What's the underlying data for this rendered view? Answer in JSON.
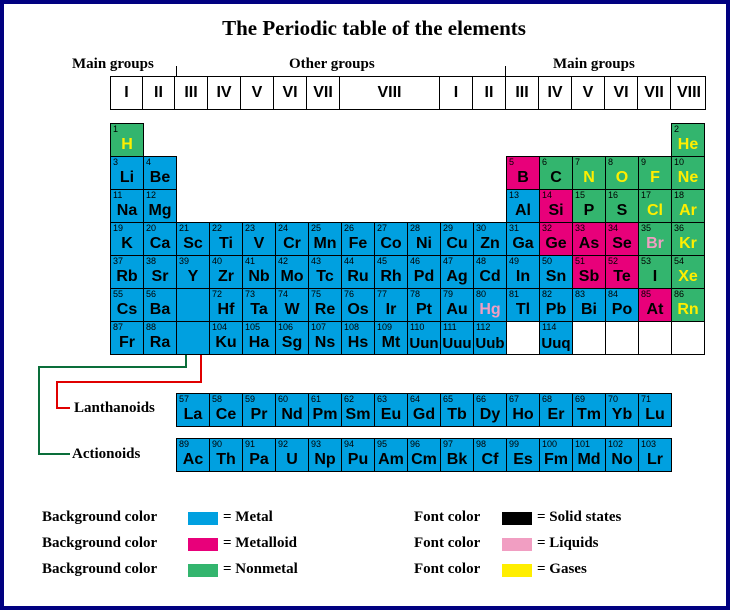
{
  "title": "The Periodic table of the elements",
  "group_headers": {
    "main_left": "Main groups",
    "other": "Other groups",
    "main_right": "Main groups"
  },
  "group_numbers": [
    "I",
    "II",
    "III",
    "IV",
    "V",
    "VI",
    "VII",
    "VIII",
    "I",
    "II",
    "III",
    "IV",
    "V",
    "VI",
    "VII",
    "VIII"
  ],
  "colors": {
    "metal": "#00a0e0",
    "metalloid": "#e8007a",
    "nonmetal": "#33b56e",
    "solid": "#000000",
    "liquid": "#f19ec2",
    "gas": "#ffee00",
    "border": "#000080",
    "lanthanoid_connector": "#e00000",
    "actinoid_connector": "#0a6e3a"
  },
  "elements": [
    {
      "n": "1",
      "s": "H",
      "p": 1,
      "c": 1,
      "t": "nonmetal",
      "st": "gas"
    },
    {
      "n": "2",
      "s": "He",
      "p": 1,
      "c": 18,
      "t": "nonmetal",
      "st": "gas"
    },
    {
      "n": "3",
      "s": "Li",
      "p": 2,
      "c": 1,
      "t": "metal",
      "st": "solid"
    },
    {
      "n": "4",
      "s": "Be",
      "p": 2,
      "c": 2,
      "t": "metal",
      "st": "solid"
    },
    {
      "n": "5",
      "s": "B",
      "p": 2,
      "c": 13,
      "t": "metalloid",
      "st": "solid"
    },
    {
      "n": "6",
      "s": "C",
      "p": 2,
      "c": 14,
      "t": "nonmetal",
      "st": "solid"
    },
    {
      "n": "7",
      "s": "N",
      "p": 2,
      "c": 15,
      "t": "nonmetal",
      "st": "gas"
    },
    {
      "n": "8",
      "s": "O",
      "p": 2,
      "c": 16,
      "t": "nonmetal",
      "st": "gas"
    },
    {
      "n": "9",
      "s": "F",
      "p": 2,
      "c": 17,
      "t": "nonmetal",
      "st": "gas"
    },
    {
      "n": "10",
      "s": "Ne",
      "p": 2,
      "c": 18,
      "t": "nonmetal",
      "st": "gas"
    },
    {
      "n": "11",
      "s": "Na",
      "p": 3,
      "c": 1,
      "t": "metal",
      "st": "solid"
    },
    {
      "n": "12",
      "s": "Mg",
      "p": 3,
      "c": 2,
      "t": "metal",
      "st": "solid"
    },
    {
      "n": "13",
      "s": "Al",
      "p": 3,
      "c": 13,
      "t": "metal",
      "st": "solid"
    },
    {
      "n": "14",
      "s": "Si",
      "p": 3,
      "c": 14,
      "t": "metalloid",
      "st": "solid"
    },
    {
      "n": "15",
      "s": "P",
      "p": 3,
      "c": 15,
      "t": "nonmetal",
      "st": "solid"
    },
    {
      "n": "16",
      "s": "S",
      "p": 3,
      "c": 16,
      "t": "nonmetal",
      "st": "solid"
    },
    {
      "n": "17",
      "s": "Cl",
      "p": 3,
      "c": 17,
      "t": "nonmetal",
      "st": "gas"
    },
    {
      "n": "18",
      "s": "Ar",
      "p": 3,
      "c": 18,
      "t": "nonmetal",
      "st": "gas"
    },
    {
      "n": "19",
      "s": "K",
      "p": 4,
      "c": 1,
      "t": "metal",
      "st": "solid"
    },
    {
      "n": "20",
      "s": "Ca",
      "p": 4,
      "c": 2,
      "t": "metal",
      "st": "solid"
    },
    {
      "n": "21",
      "s": "Sc",
      "p": 4,
      "c": 3,
      "t": "metal",
      "st": "solid"
    },
    {
      "n": "22",
      "s": "Ti",
      "p": 4,
      "c": 4,
      "t": "metal",
      "st": "solid"
    },
    {
      "n": "23",
      "s": "V",
      "p": 4,
      "c": 5,
      "t": "metal",
      "st": "solid"
    },
    {
      "n": "24",
      "s": "Cr",
      "p": 4,
      "c": 6,
      "t": "metal",
      "st": "solid"
    },
    {
      "n": "25",
      "s": "Mn",
      "p": 4,
      "c": 7,
      "t": "metal",
      "st": "solid"
    },
    {
      "n": "26",
      "s": "Fe",
      "p": 4,
      "c": 8,
      "t": "metal",
      "st": "solid"
    },
    {
      "n": "27",
      "s": "Co",
      "p": 4,
      "c": 9,
      "t": "metal",
      "st": "solid"
    },
    {
      "n": "28",
      "s": "Ni",
      "p": 4,
      "c": 10,
      "t": "metal",
      "st": "solid"
    },
    {
      "n": "29",
      "s": "Cu",
      "p": 4,
      "c": 11,
      "t": "metal",
      "st": "solid"
    },
    {
      "n": "30",
      "s": "Zn",
      "p": 4,
      "c": 12,
      "t": "metal",
      "st": "solid"
    },
    {
      "n": "31",
      "s": "Ga",
      "p": 4,
      "c": 13,
      "t": "metal",
      "st": "solid"
    },
    {
      "n": "32",
      "s": "Ge",
      "p": 4,
      "c": 14,
      "t": "metalloid",
      "st": "solid"
    },
    {
      "n": "33",
      "s": "As",
      "p": 4,
      "c": 15,
      "t": "metalloid",
      "st": "solid"
    },
    {
      "n": "34",
      "s": "Se",
      "p": 4,
      "c": 16,
      "t": "metalloid",
      "st": "solid"
    },
    {
      "n": "35",
      "s": "Br",
      "p": 4,
      "c": 17,
      "t": "nonmetal",
      "st": "liquid"
    },
    {
      "n": "36",
      "s": "Kr",
      "p": 4,
      "c": 18,
      "t": "nonmetal",
      "st": "gas"
    },
    {
      "n": "37",
      "s": "Rb",
      "p": 5,
      "c": 1,
      "t": "metal",
      "st": "solid"
    },
    {
      "n": "38",
      "s": "Sr",
      "p": 5,
      "c": 2,
      "t": "metal",
      "st": "solid"
    },
    {
      "n": "39",
      "s": "Y",
      "p": 5,
      "c": 3,
      "t": "metal",
      "st": "solid"
    },
    {
      "n": "40",
      "s": "Zr",
      "p": 5,
      "c": 4,
      "t": "metal",
      "st": "solid"
    },
    {
      "n": "41",
      "s": "Nb",
      "p": 5,
      "c": 5,
      "t": "metal",
      "st": "solid"
    },
    {
      "n": "42",
      "s": "Mo",
      "p": 5,
      "c": 6,
      "t": "metal",
      "st": "solid"
    },
    {
      "n": "43",
      "s": "Tc",
      "p": 5,
      "c": 7,
      "t": "metal",
      "st": "solid"
    },
    {
      "n": "44",
      "s": "Ru",
      "p": 5,
      "c": 8,
      "t": "metal",
      "st": "solid"
    },
    {
      "n": "45",
      "s": "Rh",
      "p": 5,
      "c": 9,
      "t": "metal",
      "st": "solid"
    },
    {
      "n": "46",
      "s": "Pd",
      "p": 5,
      "c": 10,
      "t": "metal",
      "st": "solid"
    },
    {
      "n": "47",
      "s": "Ag",
      "p": 5,
      "c": 11,
      "t": "metal",
      "st": "solid"
    },
    {
      "n": "48",
      "s": "Cd",
      "p": 5,
      "c": 12,
      "t": "metal",
      "st": "solid"
    },
    {
      "n": "49",
      "s": "In",
      "p": 5,
      "c": 13,
      "t": "metal",
      "st": "solid"
    },
    {
      "n": "50",
      "s": "Sn",
      "p": 5,
      "c": 14,
      "t": "metal",
      "st": "solid"
    },
    {
      "n": "51",
      "s": "Sb",
      "p": 5,
      "c": 15,
      "t": "metalloid",
      "st": "solid"
    },
    {
      "n": "52",
      "s": "Te",
      "p": 5,
      "c": 16,
      "t": "metalloid",
      "st": "solid"
    },
    {
      "n": "53",
      "s": "I",
      "p": 5,
      "c": 17,
      "t": "nonmetal",
      "st": "solid"
    },
    {
      "n": "54",
      "s": "Xe",
      "p": 5,
      "c": 18,
      "t": "nonmetal",
      "st": "gas"
    },
    {
      "n": "55",
      "s": "Cs",
      "p": 6,
      "c": 1,
      "t": "metal",
      "st": "solid"
    },
    {
      "n": "56",
      "s": "Ba",
      "p": 6,
      "c": 2,
      "t": "metal",
      "st": "solid"
    },
    {
      "n": "",
      "s": "",
      "p": 6,
      "c": 3,
      "t": "metal",
      "st": "solid"
    },
    {
      "n": "72",
      "s": "Hf",
      "p": 6,
      "c": 4,
      "t": "metal",
      "st": "solid"
    },
    {
      "n": "73",
      "s": "Ta",
      "p": 6,
      "c": 5,
      "t": "metal",
      "st": "solid"
    },
    {
      "n": "74",
      "s": "W",
      "p": 6,
      "c": 6,
      "t": "metal",
      "st": "solid"
    },
    {
      "n": "75",
      "s": "Re",
      "p": 6,
      "c": 7,
      "t": "metal",
      "st": "solid"
    },
    {
      "n": "76",
      "s": "Os",
      "p": 6,
      "c": 8,
      "t": "metal",
      "st": "solid"
    },
    {
      "n": "77",
      "s": "Ir",
      "p": 6,
      "c": 9,
      "t": "metal",
      "st": "solid"
    },
    {
      "n": "78",
      "s": "Pt",
      "p": 6,
      "c": 10,
      "t": "metal",
      "st": "solid"
    },
    {
      "n": "79",
      "s": "Au",
      "p": 6,
      "c": 11,
      "t": "metal",
      "st": "solid"
    },
    {
      "n": "80",
      "s": "Hg",
      "p": 6,
      "c": 12,
      "t": "metal",
      "st": "liquid"
    },
    {
      "n": "81",
      "s": "Tl",
      "p": 6,
      "c": 13,
      "t": "metal",
      "st": "solid"
    },
    {
      "n": "82",
      "s": "Pb",
      "p": 6,
      "c": 14,
      "t": "metal",
      "st": "solid"
    },
    {
      "n": "83",
      "s": "Bi",
      "p": 6,
      "c": 15,
      "t": "metal",
      "st": "solid"
    },
    {
      "n": "84",
      "s": "Po",
      "p": 6,
      "c": 16,
      "t": "metal",
      "st": "solid"
    },
    {
      "n": "85",
      "s": "At",
      "p": 6,
      "c": 17,
      "t": "metalloid",
      "st": "solid"
    },
    {
      "n": "86",
      "s": "Rn",
      "p": 6,
      "c": 18,
      "t": "nonmetal",
      "st": "gas"
    },
    {
      "n": "87",
      "s": "Fr",
      "p": 7,
      "c": 1,
      "t": "metal",
      "st": "solid"
    },
    {
      "n": "88",
      "s": "Ra",
      "p": 7,
      "c": 2,
      "t": "metal",
      "st": "solid"
    },
    {
      "n": "",
      "s": "",
      "p": 7,
      "c": 3,
      "t": "metal",
      "st": "solid"
    },
    {
      "n": "104",
      "s": "Ku",
      "p": 7,
      "c": 4,
      "t": "metal",
      "st": "solid"
    },
    {
      "n": "105",
      "s": "Ha",
      "p": 7,
      "c": 5,
      "t": "metal",
      "st": "solid"
    },
    {
      "n": "106",
      "s": "Sg",
      "p": 7,
      "c": 6,
      "t": "metal",
      "st": "solid"
    },
    {
      "n": "107",
      "s": "Ns",
      "p": 7,
      "c": 7,
      "t": "metal",
      "st": "solid"
    },
    {
      "n": "108",
      "s": "Hs",
      "p": 7,
      "c": 8,
      "t": "metal",
      "st": "solid"
    },
    {
      "n": "109",
      "s": "Mt",
      "p": 7,
      "c": 9,
      "t": "metal",
      "st": "solid"
    },
    {
      "n": "110",
      "s": "Uun",
      "p": 7,
      "c": 10,
      "t": "metal",
      "st": "solid"
    },
    {
      "n": "111",
      "s": "Uuu",
      "p": 7,
      "c": 11,
      "t": "metal",
      "st": "solid"
    },
    {
      "n": "112",
      "s": "Uub",
      "p": 7,
      "c": 12,
      "t": "metal",
      "st": "solid"
    },
    {
      "n": "",
      "s": "",
      "p": 7,
      "c": 13,
      "t": "empty",
      "st": "solid"
    },
    {
      "n": "114",
      "s": "Uuq",
      "p": 7,
      "c": 14,
      "t": "metal",
      "st": "solid"
    },
    {
      "n": "",
      "s": "",
      "p": 7,
      "c": 15,
      "t": "empty",
      "st": "solid"
    },
    {
      "n": "",
      "s": "",
      "p": 7,
      "c": 16,
      "t": "empty",
      "st": "solid"
    },
    {
      "n": "",
      "s": "",
      "p": 7,
      "c": 17,
      "t": "empty",
      "st": "solid"
    },
    {
      "n": "",
      "s": "",
      "p": 7,
      "c": 18,
      "t": "empty",
      "st": "solid"
    }
  ],
  "lanthanoids": {
    "label": "Lanthanoids",
    "elements": [
      {
        "n": "57",
        "s": "La"
      },
      {
        "n": "58",
        "s": "Ce"
      },
      {
        "n": "59",
        "s": "Pr"
      },
      {
        "n": "60",
        "s": "Nd"
      },
      {
        "n": "61",
        "s": "Pm"
      },
      {
        "n": "62",
        "s": "Sm"
      },
      {
        "n": "63",
        "s": "Eu"
      },
      {
        "n": "64",
        "s": "Gd"
      },
      {
        "n": "65",
        "s": "Tb"
      },
      {
        "n": "66",
        "s": "Dy"
      },
      {
        "n": "67",
        "s": "Ho"
      },
      {
        "n": "68",
        "s": "Er"
      },
      {
        "n": "69",
        "s": "Tm"
      },
      {
        "n": "70",
        "s": "Yb"
      },
      {
        "n": "71",
        "s": "Lu"
      }
    ]
  },
  "actinoids": {
    "label": "Actionoids",
    "elements": [
      {
        "n": "89",
        "s": "Ac"
      },
      {
        "n": "90",
        "s": "Th"
      },
      {
        "n": "91",
        "s": "Pa"
      },
      {
        "n": "92",
        "s": "U"
      },
      {
        "n": "93",
        "s": "Np"
      },
      {
        "n": "94",
        "s": "Pu"
      },
      {
        "n": "95",
        "s": "Am"
      },
      {
        "n": "96",
        "s": "Cm"
      },
      {
        "n": "97",
        "s": "Bk"
      },
      {
        "n": "98",
        "s": "Cf"
      },
      {
        "n": "99",
        "s": "Es"
      },
      {
        "n": "100",
        "s": "Fm"
      },
      {
        "n": "101",
        "s": "Md"
      },
      {
        "n": "102",
        "s": "No"
      },
      {
        "n": "103",
        "s": "Lr"
      }
    ]
  },
  "legend": {
    "background": [
      {
        "prefix": "Background color",
        "label": "= Metal",
        "color": "#00a0e0"
      },
      {
        "prefix": "Background color",
        "label": "= Metalloid",
        "color": "#e8007a"
      },
      {
        "prefix": "Background color",
        "label": "= Nonmetal",
        "color": "#33b56e"
      }
    ],
    "font": [
      {
        "prefix": "Font color",
        "label": "= Solid states",
        "color": "#000000"
      },
      {
        "prefix": "Font color",
        "label": "= Liquids",
        "color": "#f19ec2"
      },
      {
        "prefix": "Font color",
        "label": "= Gases",
        "color": "#ffee00"
      }
    ]
  }
}
